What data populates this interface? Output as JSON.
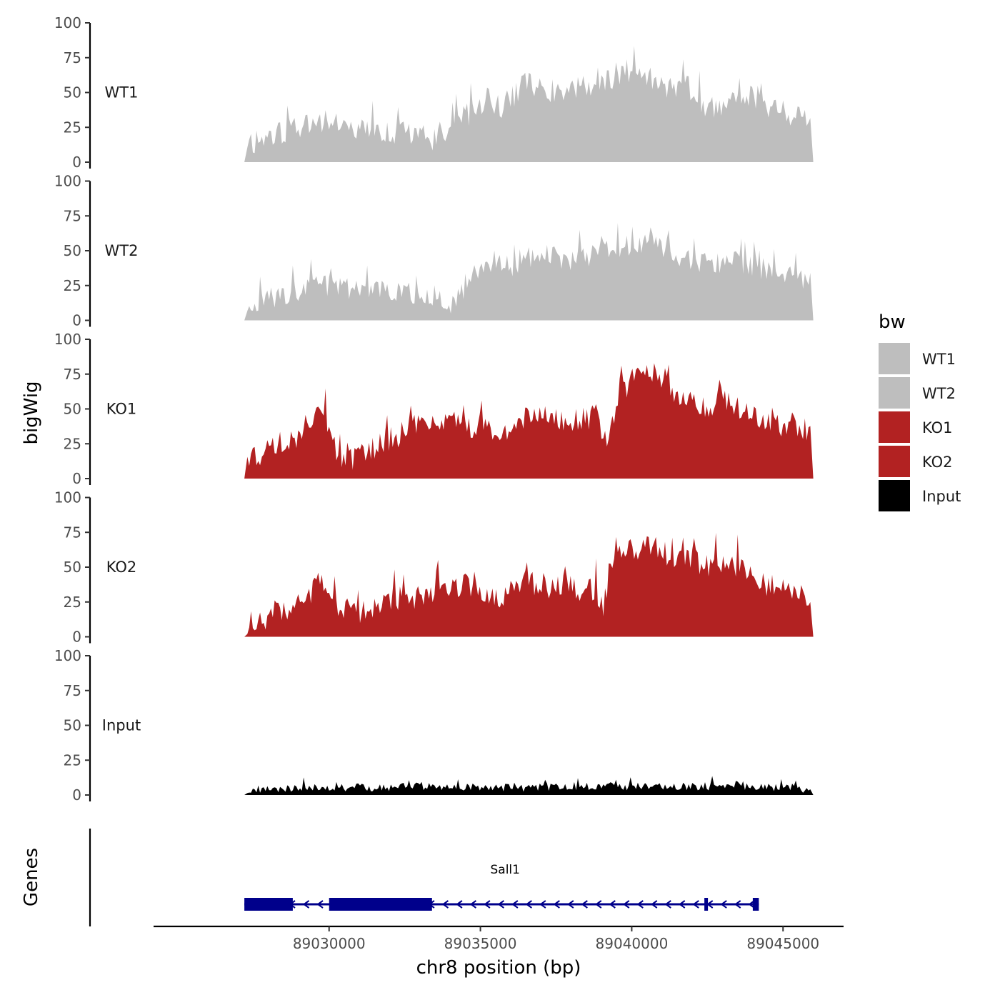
{
  "chart_data": {
    "type": "area",
    "chromosome": "chr8",
    "xlabel": "chr8 position (bp)",
    "ylabel": "bigWig",
    "genes_label": "Genes",
    "xlim": [
      89024200,
      89047000
    ],
    "x_ticks": [
      {
        "value": 89030000,
        "label": "89030000"
      },
      {
        "value": 89035000,
        "label": "89035000"
      },
      {
        "value": 89040000,
        "label": "89040000"
      },
      {
        "value": 89045000,
        "label": "89045000"
      }
    ],
    "ylim": [
      0,
      100
    ],
    "y_ticks": [
      {
        "value": 0,
        "label": "0"
      },
      {
        "value": 25,
        "label": "25"
      },
      {
        "value": 50,
        "label": "50"
      },
      {
        "value": 75,
        "label": "75"
      },
      {
        "value": 100,
        "label": "100"
      }
    ],
    "legend": {
      "title": "bw",
      "entries": [
        {
          "label": "WT1",
          "color": "#bebebe"
        },
        {
          "label": "WT2",
          "color": "#bebebe"
        },
        {
          "label": "KO1",
          "color": "#b22222"
        },
        {
          "label": "KO2",
          "color": "#b22222"
        },
        {
          "label": "Input",
          "color": "#000000"
        }
      ]
    },
    "series": [
      {
        "name": "WT1",
        "color": "#bebebe",
        "start": 89027200,
        "end": 89046000,
        "knots": [
          [
            89027200,
            0
          ],
          [
            89027300,
            15
          ],
          [
            89027600,
            14
          ],
          [
            89028000,
            18
          ],
          [
            89028500,
            20
          ],
          [
            89029000,
            24
          ],
          [
            89029500,
            30
          ],
          [
            89029900,
            28
          ],
          [
            89030500,
            25
          ],
          [
            89031000,
            22
          ],
          [
            89031500,
            20
          ],
          [
            89032000,
            20
          ],
          [
            89032500,
            22
          ],
          [
            89033000,
            18
          ],
          [
            89033500,
            15
          ],
          [
            89034000,
            15
          ],
          [
            89034300,
            30
          ],
          [
            89034800,
            35
          ],
          [
            89035200,
            45
          ],
          [
            89035600,
            38
          ],
          [
            89036000,
            45
          ],
          [
            89036500,
            55
          ],
          [
            89037000,
            52
          ],
          [
            89037500,
            50
          ],
          [
            89038000,
            50
          ],
          [
            89038500,
            55
          ],
          [
            89039000,
            55
          ],
          [
            89039500,
            60
          ],
          [
            89039900,
            65
          ],
          [
            89040300,
            58
          ],
          [
            89040800,
            60
          ],
          [
            89041200,
            52
          ],
          [
            89041700,
            55
          ],
          [
            89042000,
            50
          ],
          [
            89042500,
            35
          ],
          [
            89043000,
            40
          ],
          [
            89043500,
            45
          ],
          [
            89044000,
            48
          ],
          [
            89044500,
            40
          ],
          [
            89045000,
            35
          ],
          [
            89045500,
            30
          ],
          [
            89045900,
            30
          ],
          [
            89046000,
            0
          ]
        ],
        "seed": 11,
        "noise": 9
      },
      {
        "name": "WT2",
        "color": "#bebebe",
        "start": 89027200,
        "end": 89046000,
        "knots": [
          [
            89027200,
            0
          ],
          [
            89027300,
            12
          ],
          [
            89027800,
            14
          ],
          [
            89028500,
            18
          ],
          [
            89029000,
            20
          ],
          [
            89029500,
            24
          ],
          [
            89030000,
            24
          ],
          [
            89030500,
            22
          ],
          [
            89031000,
            20
          ],
          [
            89031500,
            20
          ],
          [
            89032000,
            22
          ],
          [
            89032500,
            18
          ],
          [
            89033000,
            20
          ],
          [
            89033500,
            15
          ],
          [
            89034200,
            10
          ],
          [
            89034500,
            25
          ],
          [
            89035000,
            38
          ],
          [
            89035500,
            42
          ],
          [
            89036000,
            38
          ],
          [
            89036500,
            42
          ],
          [
            89037000,
            48
          ],
          [
            89037500,
            45
          ],
          [
            89038000,
            42
          ],
          [
            89038500,
            45
          ],
          [
            89039000,
            50
          ],
          [
            89039500,
            50
          ],
          [
            89040000,
            52
          ],
          [
            89040500,
            55
          ],
          [
            89041000,
            52
          ],
          [
            89041500,
            45
          ],
          [
            89042000,
            42
          ],
          [
            89042500,
            40
          ],
          [
            89043000,
            40
          ],
          [
            89043500,
            42
          ],
          [
            89044000,
            38
          ],
          [
            89044500,
            35
          ],
          [
            89045000,
            32
          ],
          [
            89045500,
            28
          ],
          [
            89045900,
            28
          ],
          [
            89046000,
            0
          ]
        ],
        "seed": 23,
        "noise": 8
      },
      {
        "name": "KO1",
        "color": "#b22222",
        "start": 89027200,
        "end": 89046000,
        "knots": [
          [
            89027200,
            0
          ],
          [
            89027300,
            16
          ],
          [
            89027800,
            18
          ],
          [
            89028500,
            25
          ],
          [
            89029000,
            28
          ],
          [
            89029300,
            35
          ],
          [
            89029600,
            50
          ],
          [
            89029900,
            42
          ],
          [
            89030200,
            20
          ],
          [
            89030500,
            12
          ],
          [
            89031000,
            16
          ],
          [
            89031500,
            20
          ],
          [
            89032000,
            28
          ],
          [
            89032500,
            32
          ],
          [
            89033000,
            38
          ],
          [
            89033500,
            38
          ],
          [
            89034000,
            40
          ],
          [
            89034500,
            35
          ],
          [
            89035000,
            38
          ],
          [
            89035500,
            35
          ],
          [
            89036000,
            32
          ],
          [
            89036500,
            42
          ],
          [
            89037000,
            45
          ],
          [
            89037500,
            42
          ],
          [
            89038000,
            40
          ],
          [
            89038500,
            42
          ],
          [
            89038800,
            45
          ],
          [
            89039200,
            22
          ],
          [
            89039500,
            55
          ],
          [
            89040000,
            70
          ],
          [
            89040500,
            80
          ],
          [
            89041000,
            72
          ],
          [
            89041500,
            60
          ],
          [
            89042000,
            60
          ],
          [
            89042500,
            48
          ],
          [
            89043000,
            58
          ],
          [
            89043500,
            52
          ],
          [
            89044000,
            45
          ],
          [
            89044500,
            40
          ],
          [
            89045000,
            38
          ],
          [
            89045500,
            38
          ],
          [
            89045900,
            32
          ],
          [
            89046000,
            0
          ]
        ],
        "seed": 37,
        "noise": 9
      },
      {
        "name": "KO2",
        "color": "#b22222",
        "start": 89027200,
        "end": 89046000,
        "knots": [
          [
            89027200,
            0
          ],
          [
            89027300,
            8
          ],
          [
            89027800,
            12
          ],
          [
            89028500,
            18
          ],
          [
            89029000,
            22
          ],
          [
            89029300,
            25
          ],
          [
            89029600,
            42
          ],
          [
            89029900,
            40
          ],
          [
            89030200,
            20
          ],
          [
            89030500,
            14
          ],
          [
            89031000,
            16
          ],
          [
            89031500,
            20
          ],
          [
            89032000,
            24
          ],
          [
            89032500,
            28
          ],
          [
            89033000,
            28
          ],
          [
            89033500,
            30
          ],
          [
            89034000,
            36
          ],
          [
            89034500,
            35
          ],
          [
            89035000,
            30
          ],
          [
            89035500,
            28
          ],
          [
            89036000,
            32
          ],
          [
            89036500,
            40
          ],
          [
            89037000,
            36
          ],
          [
            89037500,
            35
          ],
          [
            89038000,
            35
          ],
          [
            89038500,
            32
          ],
          [
            89038800,
            34
          ],
          [
            89039100,
            20
          ],
          [
            89039500,
            55
          ],
          [
            89040000,
            62
          ],
          [
            89040500,
            65
          ],
          [
            89041000,
            60
          ],
          [
            89041500,
            55
          ],
          [
            89042000,
            55
          ],
          [
            89042500,
            50
          ],
          [
            89043000,
            52
          ],
          [
            89043500,
            50
          ],
          [
            89044000,
            42
          ],
          [
            89044500,
            35
          ],
          [
            89045000,
            35
          ],
          [
            89045500,
            34
          ],
          [
            89045900,
            20
          ],
          [
            89046000,
            0
          ]
        ],
        "seed": 53,
        "noise": 9
      },
      {
        "name": "Input",
        "color": "#000000",
        "start": 89027200,
        "end": 89046000,
        "knots": [
          [
            89027200,
            0
          ],
          [
            89027300,
            3
          ],
          [
            89028000,
            4
          ],
          [
            89029000,
            5
          ],
          [
            89030000,
            5
          ],
          [
            89031000,
            5
          ],
          [
            89032000,
            5
          ],
          [
            89033000,
            6
          ],
          [
            89034000,
            5
          ],
          [
            89035000,
            6
          ],
          [
            89036000,
            5
          ],
          [
            89037000,
            5
          ],
          [
            89038000,
            6
          ],
          [
            89039000,
            6
          ],
          [
            89040000,
            6
          ],
          [
            89041000,
            6
          ],
          [
            89042000,
            6
          ],
          [
            89043000,
            6
          ],
          [
            89043500,
            7
          ],
          [
            89044000,
            5
          ],
          [
            89045000,
            5
          ],
          [
            89045500,
            5
          ],
          [
            89046000,
            0
          ]
        ],
        "seed": 71,
        "noise": 3
      }
    ],
    "gene": {
      "name": "Sall1",
      "strand": "-",
      "color": "#00008b",
      "start": 89027200,
      "end": 89044200,
      "exons": [
        {
          "start": 89027200,
          "end": 89028800,
          "thick": true
        },
        {
          "start": 89030000,
          "end": 89033400,
          "thick": true
        },
        {
          "start": 89042400,
          "end": 89042500,
          "thick": false
        },
        {
          "start": 89044000,
          "end": 89044200,
          "thick": false
        }
      ]
    }
  }
}
